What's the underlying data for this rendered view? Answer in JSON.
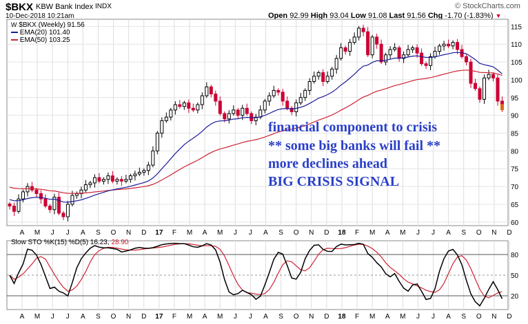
{
  "header": {
    "symbol": "$BKX",
    "name": "KBW Bank Index",
    "exchange": "INDX",
    "date": "10-Dec-2018 10:21am",
    "watermark": "© StockCharts.com",
    "ohlc": {
      "open_label": "Open",
      "open": "92.99",
      "high_label": "High",
      "high": "93.04",
      "low_label": "Low",
      "low": "91.08",
      "last_label": "Last",
      "last": "91.56",
      "chg_label": "Chg",
      "chg": "-1.70 (-1.83%)"
    }
  },
  "legend": {
    "main": "$BKX (Weekly) 91.56",
    "ema20": "EMA(20) 101.40",
    "ema50": "EMA(50) 103.25"
  },
  "annotation": [
    "financial component to crisis",
    "** some big banks will fail **",
    "more declines ahead",
    "BIG CRISIS SIGNAL"
  ],
  "colors": {
    "up": "#000000",
    "down": "#cc0033",
    "ema20": "#1a1a99",
    "ema50": "#cc2233",
    "sto_k": "#000000",
    "sto_d": "#cc2233",
    "annotation": "#2a3fc8"
  },
  "chart_data": [
    {
      "type": "candlestick",
      "title": "$BKX KBW Bank Index INDX",
      "ylim": [
        59,
        117
      ],
      "y_ticks": [
        60,
        65,
        70,
        75,
        80,
        85,
        90,
        95,
        100,
        105,
        110,
        115
      ],
      "x_ticks": [
        "A",
        "M",
        "J",
        "J",
        "A",
        "S",
        "O",
        "N",
        "D",
        "17",
        "F",
        "M",
        "A",
        "M",
        "J",
        "J",
        "A",
        "S",
        "O",
        "N",
        "D",
        "18",
        "F",
        "M",
        "A",
        "M",
        "J",
        "J",
        "A",
        "S",
        "O",
        "N",
        "D"
      ],
      "series": [
        {
          "name": "$BKX (Weekly)",
          "close": [
            64.5,
            63.0,
            66.5,
            68.5,
            70.0,
            69.0,
            68.0,
            66.5,
            64.5,
            63.5,
            67.0,
            62.5,
            61.5,
            65.0,
            67.5,
            68.0,
            69.0,
            70.5,
            71.0,
            72.5,
            71.5,
            72.0,
            73.0,
            71.5,
            72.0,
            71.5,
            72.0,
            73.0,
            73.5,
            74.0,
            74.5,
            76.0,
            80.0,
            85.0,
            88.5,
            89.5,
            91.5,
            93.0,
            92.5,
            93.5,
            92.0,
            91.5,
            93.0,
            95.5,
            98.0,
            96.0,
            94.0,
            90.5,
            89.0,
            90.5,
            91.5,
            90.0,
            92.0,
            90.5,
            88.5,
            89.5,
            91.5,
            94.0,
            95.5,
            97.0,
            96.5,
            94.0,
            92.0,
            91.0,
            93.5,
            95.0,
            97.0,
            99.5,
            101.0,
            102.0,
            99.5,
            101.0,
            103.0,
            106.0,
            109.0,
            108.0,
            110.5,
            112.0,
            114.5,
            113.5,
            107.0,
            112.0,
            110.0,
            105.0,
            107.0,
            108.5,
            109.0,
            106.0,
            107.0,
            108.5,
            109.0,
            107.5,
            104.5,
            104.0,
            106.5,
            108.0,
            109.5,
            110.0,
            109.5,
            110.5,
            108.5,
            106.5,
            105.0,
            99.0,
            97.5,
            94.5,
            100.5,
            101.5,
            100.5,
            94.0,
            91.56
          ]
        },
        {
          "name": "EMA(20) 101.40"
        },
        {
          "name": "EMA(50) 103.25"
        }
      ]
    },
    {
      "type": "line",
      "title": "Slow STO %K(15) %D(5) 16.23, 28.90",
      "ylim": [
        0,
        100
      ],
      "y_ticks": [
        20,
        50,
        80
      ],
      "x_ticks": [
        "A",
        "M",
        "J",
        "J",
        "A",
        "S",
        "O",
        "N",
        "D",
        "17",
        "F",
        "M",
        "A",
        "M",
        "J",
        "J",
        "A",
        "S",
        "O",
        "N",
        "D",
        "18",
        "F",
        "M",
        "A",
        "M",
        "J",
        "J",
        "A",
        "S",
        "O",
        "N",
        "D"
      ],
      "series": [
        {
          "name": "%K(15)",
          "last": 16.23
        },
        {
          "name": "%D(5)",
          "last": 28.9
        }
      ]
    }
  ],
  "sto_legend": {
    "prefix": "Slow STO %K(15) %D(5) 16.23,",
    "d_value": "28.90"
  }
}
